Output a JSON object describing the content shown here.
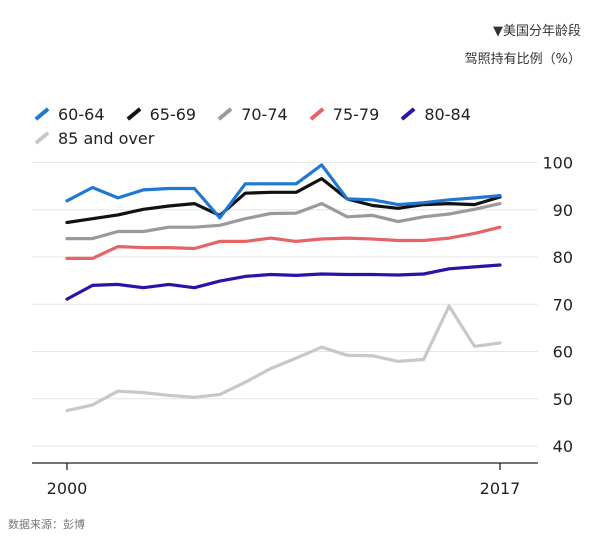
{
  "title_line1": "▼美国分年龄段",
  "title_line2": "驾照持有比例（%）",
  "source": "数据来源：彭博",
  "chart_data": {
    "type": "line",
    "title": "▼美国分年龄段 驾照持有比例（%）",
    "xlabel": "",
    "ylabel": "",
    "x": [
      2000,
      2001,
      2002,
      2003,
      2004,
      2005,
      2006,
      2007,
      2008,
      2009,
      2010,
      2011,
      2012,
      2013,
      2014,
      2015,
      2016,
      2017
    ],
    "x_tick_labels": [
      "2000",
      "2017"
    ],
    "y_ticks": [
      40,
      50,
      60,
      70,
      80,
      90,
      100
    ],
    "ylim": [
      37,
      102
    ],
    "grid": true,
    "legend": "top-left",
    "series": [
      {
        "name": "60-64",
        "color": "#1f78d1",
        "values": [
          91.9,
          94.7,
          92.5,
          94.2,
          94.5,
          94.5,
          88.3,
          95.5,
          95.5,
          95.5,
          99.5,
          92.3,
          92.1,
          91.1,
          91.5,
          92.1,
          92.5,
          93.0
        ]
      },
      {
        "name": "65-69",
        "color": "#111111",
        "values": [
          87.3,
          88.1,
          88.9,
          90.1,
          90.8,
          91.3,
          88.8,
          93.5,
          93.7,
          93.7,
          96.6,
          92.3,
          90.9,
          90.3,
          91.1,
          91.3,
          91.1,
          92.7
        ]
      },
      {
        "name": "70-74",
        "color": "#9a9a9a",
        "values": [
          83.9,
          83.9,
          85.4,
          85.4,
          86.3,
          86.3,
          86.7,
          88.1,
          89.2,
          89.3,
          91.3,
          88.5,
          88.8,
          87.5,
          88.5,
          89.1,
          90.1,
          91.3
        ]
      },
      {
        "name": "75-79",
        "color": "#e56466",
        "values": [
          79.7,
          79.7,
          82.2,
          82.0,
          82.0,
          81.8,
          83.3,
          83.3,
          84.0,
          83.3,
          83.8,
          84.0,
          83.8,
          83.5,
          83.5,
          84.0,
          85.0,
          86.3
        ]
      },
      {
        "name": "80-84",
        "color": "#2a13a6",
        "values": [
          71.1,
          74.0,
          74.2,
          73.5,
          74.2,
          73.5,
          74.9,
          75.9,
          76.3,
          76.1,
          76.4,
          76.3,
          76.3,
          76.2,
          76.4,
          77.5,
          77.9,
          78.3
        ]
      },
      {
        "name": "85 and over",
        "color": "#c8c8c8",
        "values": [
          47.5,
          48.7,
          51.6,
          51.3,
          50.7,
          50.3,
          50.9,
          53.5,
          56.4,
          58.6,
          60.9,
          59.2,
          59.1,
          57.9,
          58.3,
          69.6,
          61.1,
          61.8
        ]
      }
    ]
  }
}
